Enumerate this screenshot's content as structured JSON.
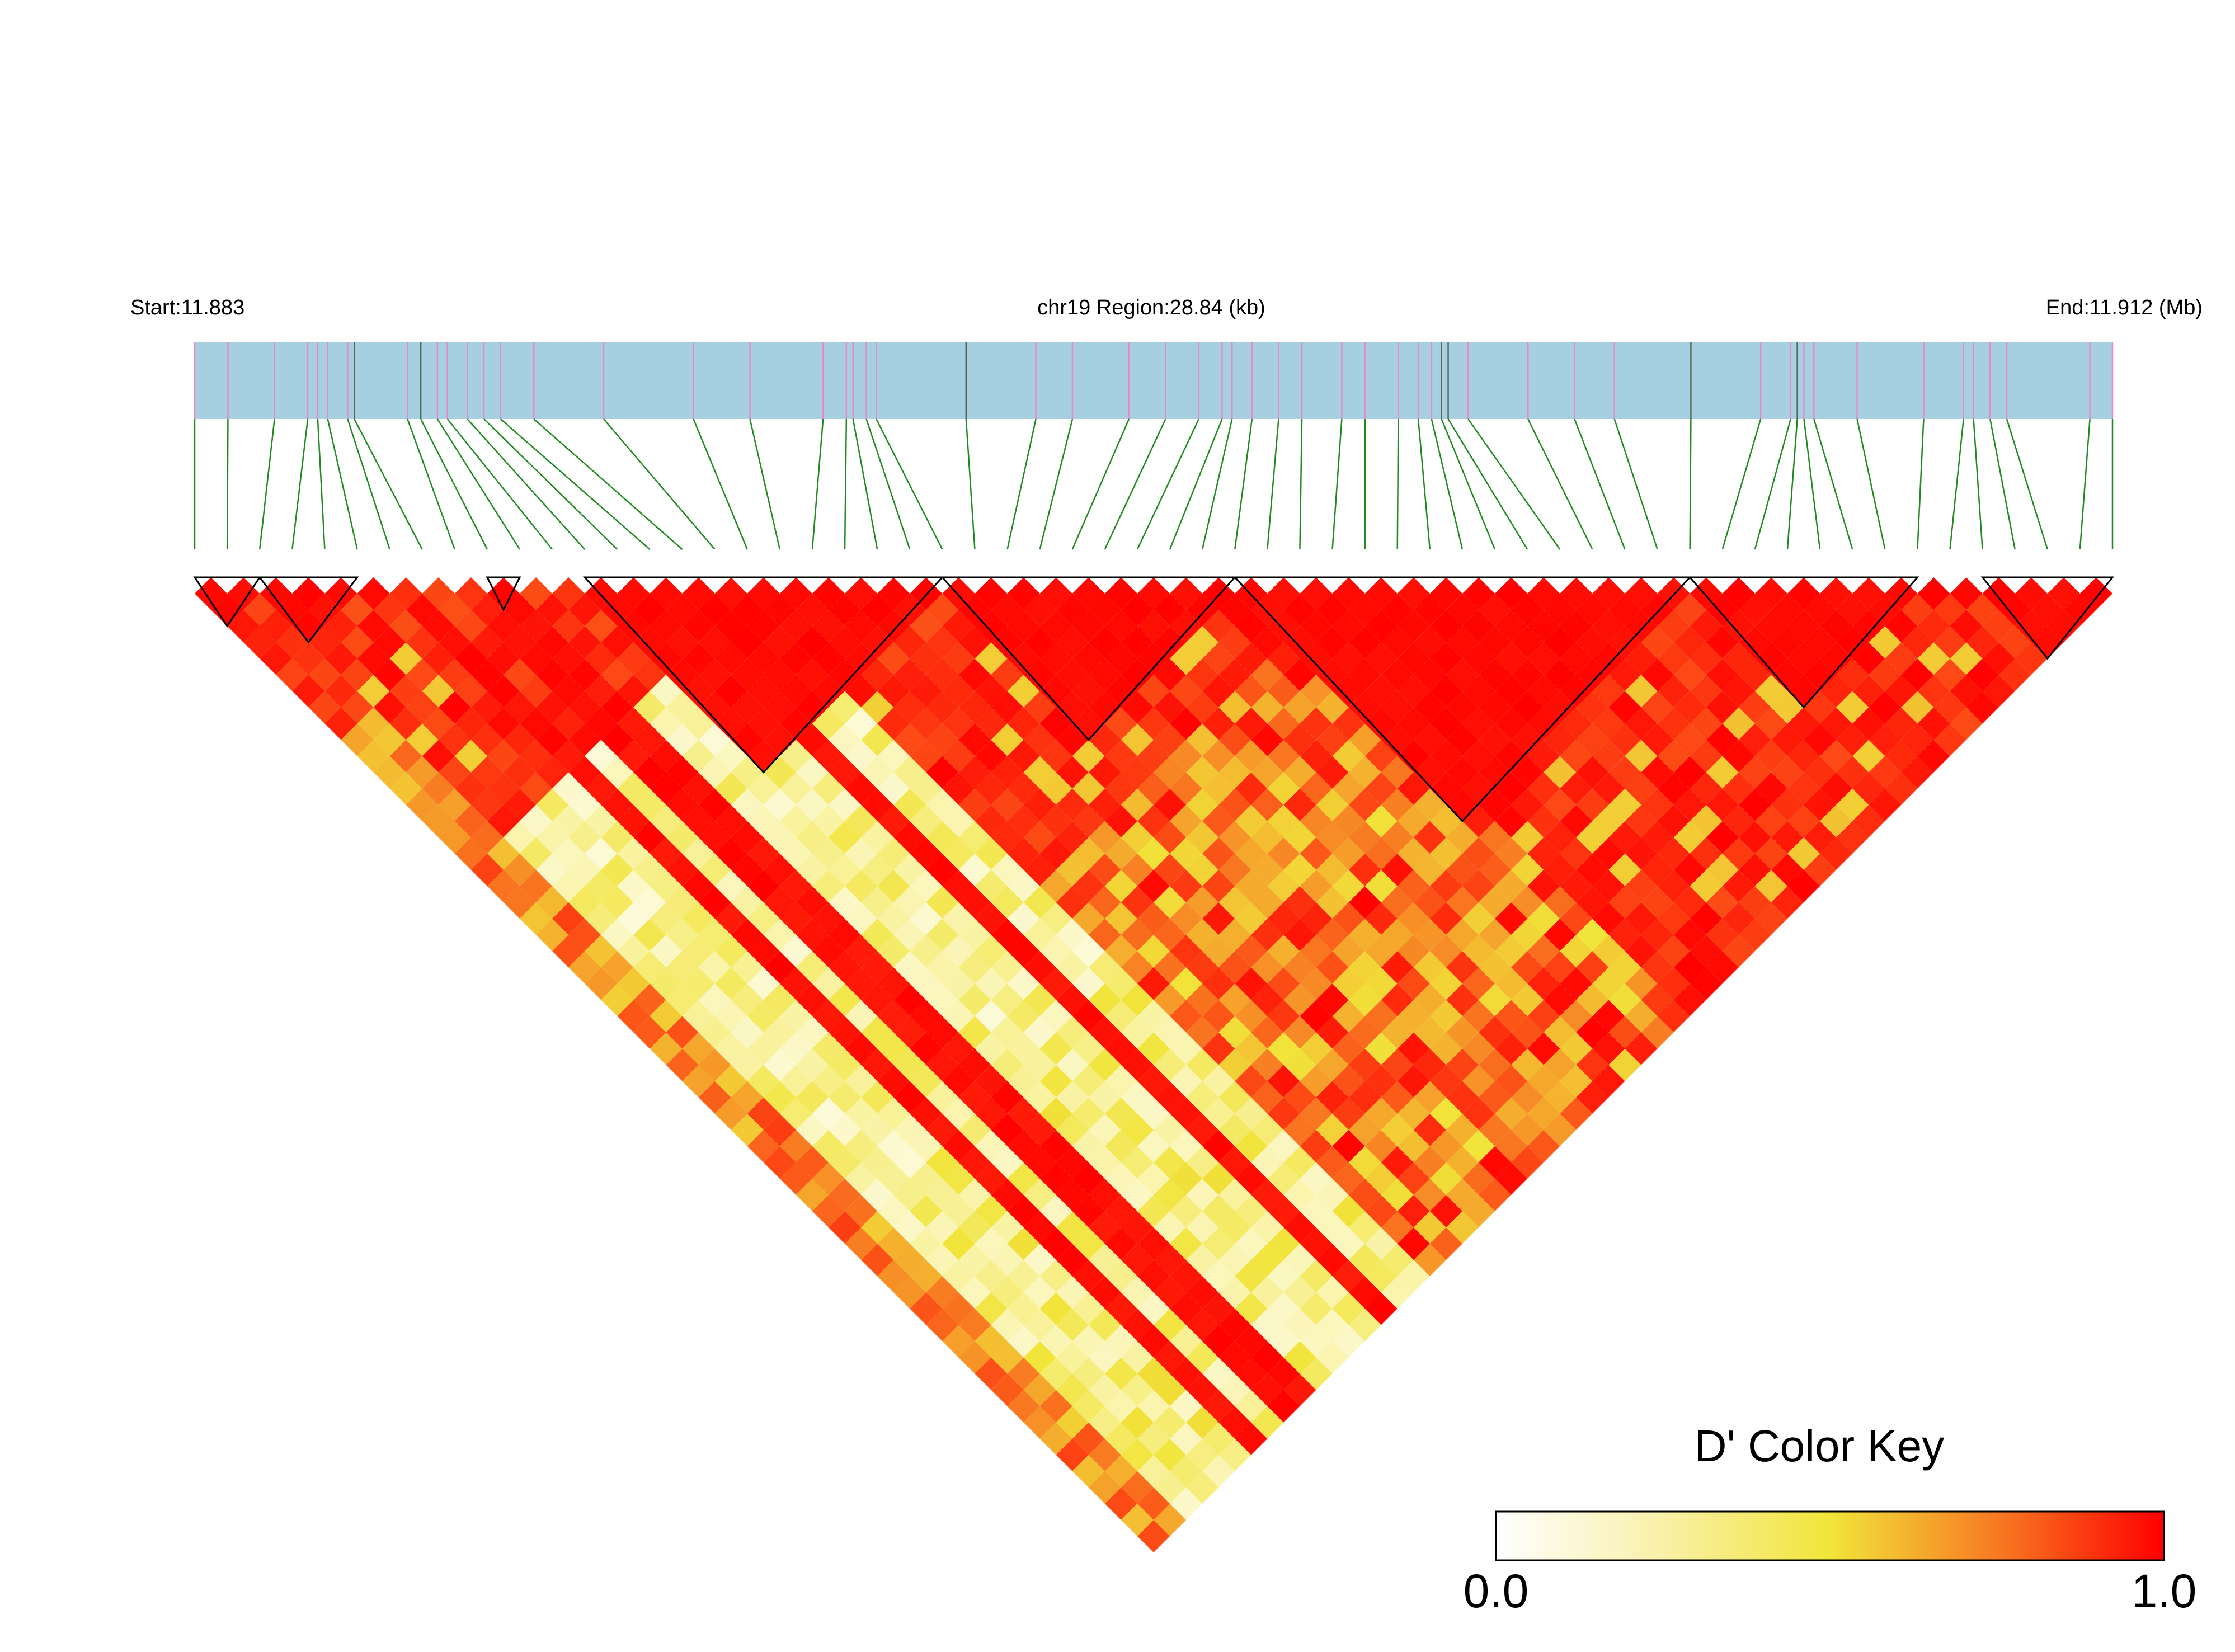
{
  "chart_data": {
    "type": "heatmap",
    "title": "",
    "header": {
      "start_label": "Start:11.883",
      "region_label": "chr19 Region:28.84 (kb)",
      "end_label": "End:11.912 (Mb)"
    },
    "region": {
      "chromosome": "chr19",
      "start_mb": 11.883,
      "end_mb": 11.912,
      "length_kb": 28.84
    },
    "color_key": {
      "title": "D' Color Key",
      "min_label": "0.0",
      "max_label": "1.0",
      "range": [
        0.0,
        1.0
      ],
      "colors": {
        "low": "#ffffff",
        "mid": "#f2e43c",
        "high": "#ff0000"
      }
    },
    "colors": {
      "track": "#a6cfe2",
      "snp_pink": "#e58cc8",
      "snp_dark": "#556b55",
      "connector": "#1f8a1f",
      "block_outline": "#000000"
    },
    "snp_count": 60,
    "snp_positions_kb": [
      0.0,
      0.5,
      1.2,
      1.7,
      1.85,
      2.0,
      2.3,
      2.4,
      3.2,
      3.4,
      3.65,
      3.8,
      4.1,
      4.35,
      4.6,
      5.1,
      6.15,
      7.5,
      8.35,
      9.45,
      9.8,
      9.9,
      10.1,
      10.25,
      11.6,
      12.65,
      13.2,
      14.05,
      14.6,
      15.1,
      15.45,
      15.6,
      15.9,
      16.3,
      16.65,
      17.25,
      17.6,
      18.1,
      18.4,
      18.6,
      18.75,
      18.85,
      19.15,
      20.05,
      20.75,
      21.35,
      22.5,
      23.55,
      24.0,
      24.1,
      24.2,
      24.35,
      25.0,
      26.0,
      26.6,
      26.75,
      27.0,
      27.25,
      28.5,
      28.84
    ],
    "blocks": [
      {
        "first_snp": 1,
        "last_snp": 3
      },
      {
        "first_snp": 3,
        "last_snp": 6
      },
      {
        "first_snp": 10,
        "last_snp": 11
      },
      {
        "first_snp": 13,
        "last_snp": 24
      },
      {
        "first_snp": 24,
        "last_snp": 33
      },
      {
        "first_snp": 33,
        "last_snp": 47
      },
      {
        "first_snp": 47,
        "last_snp": 54
      },
      {
        "first_snp": 56,
        "last_snp": 60
      }
    ],
    "dprime_summary": "pairwise D' among 60 SNPs; most pairs near 1.0 (red); SNPs 3-16 show low-to-moderate D' (yellow) with distant SNPs"
  }
}
